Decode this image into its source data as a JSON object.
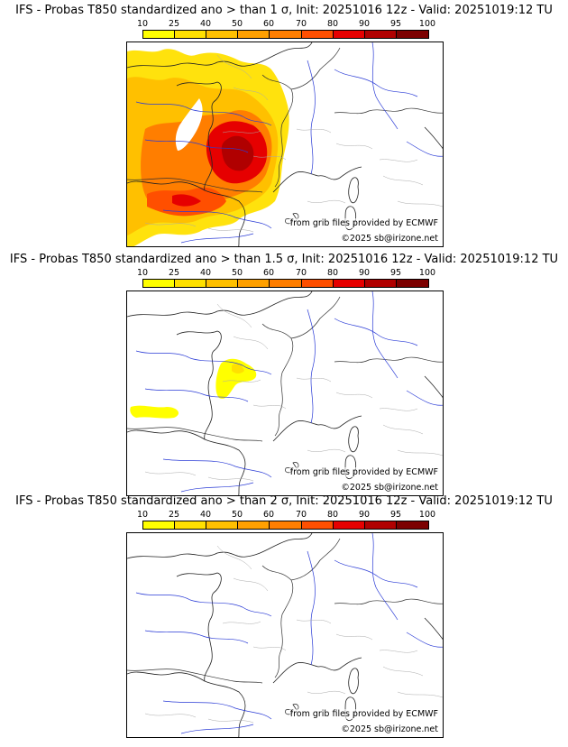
{
  "scale": {
    "labels": [
      "10",
      "25",
      "40",
      "50",
      "60",
      "70",
      "80",
      "90",
      "95",
      "100"
    ],
    "colors": [
      "#ffff00",
      "#ffe000",
      "#ffc000",
      "#ffa000",
      "#ff7e00",
      "#ff4f00",
      "#e60000",
      "#b00000",
      "#7c0000"
    ]
  },
  "panels": [
    {
      "title": "IFS - Probas T850  standardized ano > than 1 σ, Init: 20251016 12z - Valid: 20251019:12 TU",
      "credit": "from grib files provided by ECMWF",
      "copyright": "©2025 sb@irizone.net"
    },
    {
      "title": "IFS - Probas T850  standardized ano > than 1.5 σ, Init: 20251016 12z - Valid: 20251019:12 TU",
      "credit": "from grib files provided by ECMWF",
      "copyright": "©2025 sb@irizone.net"
    },
    {
      "title": "IFS - Probas T850  standardized ano > than 2 σ, Init: 20251016 12z - Valid: 20251019:12 TU",
      "credit": "from grib files provided by ECMWF",
      "copyright": "©2025 sb@irizone.net"
    }
  ]
}
